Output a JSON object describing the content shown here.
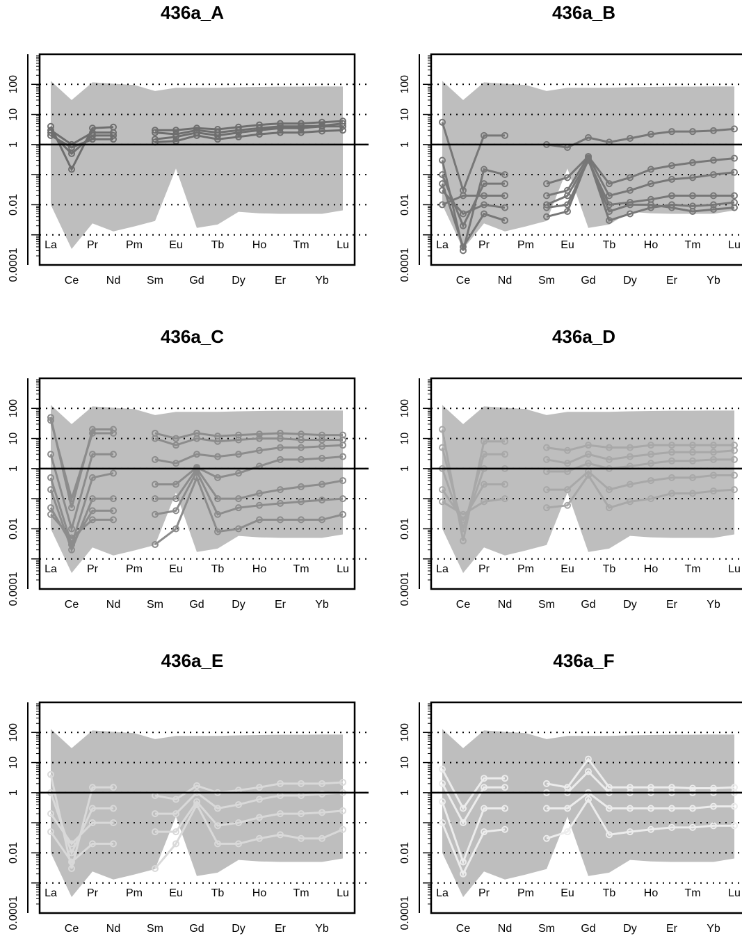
{
  "chart_data": [
    {
      "type": "line",
      "title": "436a_A",
      "log_y": true,
      "categories": [
        "La",
        "Ce",
        "Pr",
        "Nd",
        "Pm",
        "Sm",
        "Eu",
        "Gd",
        "Tb",
        "Dy",
        "Ho",
        "Er",
        "Tm",
        "Yb",
        "Lu"
      ],
      "ylim": [
        0.0001,
        1000
      ],
      "yticks": [
        100,
        10,
        1,
        0.01,
        0.0001
      ],
      "grid_lines": [
        100,
        10,
        1,
        0.1,
        0.01,
        0.001
      ],
      "reference_line": 1,
      "envelope": {
        "color": "#bebebe",
        "upper": [
          130,
          30,
          117,
          105,
          95,
          60,
          77,
          77,
          77,
          80,
          82,
          84,
          84,
          85,
          85
        ],
        "lower": [
          0.01,
          0.00034,
          0.0024,
          0.0013,
          0.0019,
          0.0029,
          0.16,
          0.0017,
          0.0022,
          0.0058,
          0.0052,
          0.005,
          0.005,
          0.005,
          0.0065
        ]
      },
      "color": "#6e6e6e",
      "series": [
        {
          "values": [
            4,
            0.15,
            3.5,
            3.8,
            null,
            3,
            3,
            3.5,
            3.2,
            3.8,
            4.5,
            5,
            5,
            5.5,
            6
          ]
        },
        {
          "values": [
            2.5,
            0.5,
            2,
            2,
            null,
            1.5,
            1.8,
            2.5,
            2,
            2.5,
            3,
            3.5,
            3.5,
            4,
            4
          ]
        },
        {
          "values": [
            3,
            1,
            2.5,
            2.5,
            null,
            1.2,
            1.3,
            2,
            1.5,
            1.8,
            2.2,
            2.5,
            2.5,
            2.8,
            3
          ]
        },
        {
          "values": [
            2,
            0.8,
            1.5,
            1.5,
            null,
            2.5,
            2.2,
            3,
            2.5,
            3,
            3.5,
            4,
            4,
            4.2,
            5
          ]
        }
      ]
    },
    {
      "type": "line",
      "title": "436a_B",
      "log_y": true,
      "categories": [
        "La",
        "Ce",
        "Pr",
        "Nd",
        "Pm",
        "Sm",
        "Eu",
        "Gd",
        "Tb",
        "Dy",
        "Ho",
        "Er",
        "Tm",
        "Yb",
        "Lu"
      ],
      "ylim": [
        0.0001,
        1000
      ],
      "yticks": [
        100,
        10,
        1,
        0.01,
        0.0001
      ],
      "grid_lines": [
        100,
        10,
        1,
        0.1,
        0.01,
        0.001
      ],
      "reference_line": 1,
      "envelope": {
        "color": "#bebebe",
        "upper": [
          130,
          30,
          117,
          105,
          95,
          60,
          77,
          77,
          77,
          80,
          82,
          84,
          84,
          85,
          85
        ],
        "lower": [
          0.01,
          0.00034,
          0.0024,
          0.0013,
          0.0019,
          0.0029,
          0.16,
          0.0017,
          0.0022,
          0.0058,
          0.0052,
          0.005,
          0.005,
          0.005,
          0.0065
        ]
      },
      "color": "#777777",
      "series": [
        {
          "values": [
            5.5,
            0.03,
            2,
            2,
            null,
            1,
            0.8,
            1.7,
            1.2,
            1.6,
            2.2,
            2.7,
            2.7,
            2.9,
            3.3
          ]
        },
        {
          "values": [
            0.3,
            0.0003,
            0.15,
            0.1,
            null,
            0.05,
            0.08,
            0.4,
            0.05,
            0.08,
            0.15,
            0.2,
            0.25,
            0.3,
            0.35
          ]
        },
        {
          "values": [
            0.1,
            0.002,
            0.05,
            0.05,
            null,
            0.02,
            0.03,
            0.4,
            0.02,
            0.03,
            0.05,
            0.07,
            0.08,
            0.1,
            0.12
          ]
        },
        {
          "values": [
            0.03,
            0.005,
            0.01,
            0.008,
            null,
            0.004,
            0.006,
            0.35,
            0.003,
            0.005,
            0.008,
            0.01,
            0.009,
            0.01,
            0.012
          ]
        },
        {
          "values": [
            0.01,
            0.02,
            0.02,
            0.02,
            null,
            0.01,
            0.02,
            0.3,
            0.01,
            0.012,
            0.015,
            0.02,
            0.02,
            0.02,
            0.02
          ]
        },
        {
          "values": [
            0.05,
            0.0004,
            0.005,
            0.003,
            null,
            0.008,
            0.01,
            0.3,
            0.006,
            0.01,
            0.01,
            0.008,
            0.006,
            0.007,
            0.008
          ]
        }
      ]
    },
    {
      "type": "line",
      "title": "436a_C",
      "log_y": true,
      "categories": [
        "La",
        "Ce",
        "Pr",
        "Nd",
        "Pm",
        "Sm",
        "Eu",
        "Gd",
        "Tb",
        "Dy",
        "Ho",
        "Er",
        "Tm",
        "Yb",
        "Lu"
      ],
      "ylim": [
        0.0001,
        1000
      ],
      "yticks": [
        100,
        10,
        1,
        0.01,
        0.0001
      ],
      "grid_lines": [
        100,
        10,
        1,
        0.1,
        0.01,
        0.001
      ],
      "reference_line": 1,
      "envelope": {
        "color": "#bebebe",
        "upper": [
          130,
          30,
          117,
          105,
          95,
          60,
          77,
          77,
          77,
          80,
          82,
          84,
          84,
          85,
          85
        ],
        "lower": [
          0.01,
          0.00034,
          0.0024,
          0.0013,
          0.0019,
          0.0029,
          0.16,
          0.0017,
          0.0022,
          0.0058,
          0.0052,
          0.005,
          0.005,
          0.005,
          0.0065
        ]
      },
      "color": "#8c8c8c",
      "series": [
        {
          "values": [
            50,
            0.05,
            20,
            20,
            null,
            15,
            10,
            15,
            12,
            13,
            14,
            15,
            14,
            13,
            13
          ]
        },
        {
          "values": [
            40,
            0.1,
            15,
            15,
            null,
            10,
            6,
            10,
            8,
            9,
            10,
            10,
            9,
            9,
            9
          ]
        },
        {
          "values": [
            3,
            0.01,
            3,
            3,
            null,
            2,
            1.5,
            3,
            2.5,
            3,
            4,
            5,
            5,
            5.5,
            6
          ]
        },
        {
          "values": [
            0.5,
            0.003,
            0.5,
            0.7,
            null,
            0.3,
            0.3,
            1.1,
            0.5,
            0.7,
            1.2,
            2,
            2,
            2.2,
            2.5
          ]
        },
        {
          "values": [
            0.2,
            0.002,
            0.1,
            0.1,
            null,
            0.1,
            0.1,
            1,
            0.1,
            0.1,
            0.15,
            0.2,
            0.25,
            0.3,
            0.4
          ]
        },
        {
          "values": [
            0.05,
            0.003,
            0.04,
            0.04,
            null,
            0.03,
            0.04,
            0.8,
            0.03,
            0.05,
            0.06,
            0.07,
            0.08,
            0.09,
            0.1
          ]
        },
        {
          "values": [
            0.03,
            0.005,
            0.02,
            0.02,
            null,
            0.003,
            0.01,
            0.5,
            0.008,
            0.01,
            0.02,
            0.02,
            0.02,
            0.02,
            0.03
          ]
        }
      ]
    },
    {
      "type": "line",
      "title": "436a_D",
      "log_y": true,
      "categories": [
        "La",
        "Ce",
        "Pr",
        "Nd",
        "Pm",
        "Sm",
        "Eu",
        "Gd",
        "Tb",
        "Dy",
        "Ho",
        "Er",
        "Tm",
        "Yb",
        "Lu"
      ],
      "ylim": [
        0.0001,
        1000
      ],
      "yticks": [
        100,
        10,
        1,
        0.01,
        0.0001
      ],
      "grid_lines": [
        100,
        10,
        1,
        0.1,
        0.01,
        0.001
      ],
      "reference_line": 1,
      "envelope": {
        "color": "#bebebe",
        "upper": [
          130,
          30,
          117,
          105,
          95,
          60,
          77,
          77,
          77,
          80,
          82,
          84,
          84,
          85,
          85
        ],
        "lower": [
          0.01,
          0.00034,
          0.0024,
          0.0013,
          0.0019,
          0.0029,
          0.16,
          0.0017,
          0.0022,
          0.0058,
          0.0052,
          0.005,
          0.005,
          0.005,
          0.0065
        ]
      },
      "color": "#a8a8a8",
      "series": [
        {
          "values": [
            20,
            0.004,
            8,
            8,
            null,
            5,
            4,
            6,
            5,
            5,
            6,
            6,
            6,
            6,
            6
          ]
        },
        {
          "values": [
            5,
            0.01,
            3,
            3,
            null,
            2,
            1.5,
            3,
            2,
            2.5,
            3,
            3.5,
            3.5,
            3.5,
            4
          ]
        },
        {
          "values": [
            1,
            0.01,
            1,
            1,
            null,
            0.8,
            0.8,
            1.5,
            1,
            1.2,
            1.5,
            1.8,
            1.8,
            2,
            2
          ]
        },
        {
          "values": [
            0.2,
            0.02,
            0.3,
            0.3,
            null,
            0.2,
            0.2,
            0.8,
            0.2,
            0.3,
            0.4,
            0.5,
            0.5,
            0.6,
            0.6
          ]
        },
        {
          "values": [
            0.08,
            0.03,
            0.08,
            0.1,
            null,
            0.05,
            0.06,
            0.6,
            0.05,
            0.08,
            0.1,
            0.15,
            0.15,
            0.18,
            0.2
          ]
        }
      ]
    },
    {
      "type": "line",
      "title": "436a_E",
      "log_y": true,
      "categories": [
        "La",
        "Ce",
        "Pr",
        "Nd",
        "Pm",
        "Sm",
        "Eu",
        "Gd",
        "Tb",
        "Dy",
        "Ho",
        "Er",
        "Tm",
        "Yb",
        "Lu"
      ],
      "ylim": [
        0.0001,
        1000
      ],
      "yticks": [
        100,
        10,
        1,
        0.01,
        0.0001
      ],
      "grid_lines": [
        100,
        10,
        1,
        0.1,
        0.01,
        0.001
      ],
      "reference_line": 1,
      "envelope": {
        "color": "#bebebe",
        "upper": [
          130,
          30,
          117,
          105,
          95,
          60,
          77,
          77,
          77,
          80,
          82,
          84,
          84,
          85,
          85
        ],
        "lower": [
          0.01,
          0.00034,
          0.0024,
          0.0013,
          0.0019,
          0.0029,
          0.16,
          0.0017,
          0.0022,
          0.0058,
          0.0052,
          0.005,
          0.005,
          0.005,
          0.0065
        ]
      },
      "color": "#d9d9d9",
      "series": [
        {
          "values": [
            4,
            0.003,
            1.5,
            1.5,
            null,
            0.8,
            0.6,
            1.7,
            1,
            1.2,
            1.5,
            2,
            2,
            2,
            2.2
          ]
        },
        {
          "values": [
            1,
            0.01,
            0.3,
            0.3,
            null,
            0.2,
            0.2,
            1,
            0.3,
            0.4,
            0.6,
            0.8,
            0.8,
            0.9,
            1
          ]
        },
        {
          "values": [
            0.2,
            0.02,
            0.1,
            0.1,
            null,
            0.05,
            0.05,
            0.5,
            0.08,
            0.1,
            0.15,
            0.2,
            0.2,
            0.22,
            0.25
          ]
        },
        {
          "values": [
            0.05,
            0.005,
            0.02,
            0.02,
            null,
            0.003,
            0.02,
            0.4,
            0.02,
            0.02,
            0.03,
            0.04,
            0.03,
            0.03,
            0.06
          ]
        }
      ]
    },
    {
      "type": "line",
      "title": "436a_F",
      "log_y": true,
      "categories": [
        "La",
        "Ce",
        "Pr",
        "Nd",
        "Pm",
        "Sm",
        "Eu",
        "Gd",
        "Tb",
        "Dy",
        "Ho",
        "Er",
        "Tm",
        "Yb",
        "Lu"
      ],
      "ylim": [
        0.0001,
        1000
      ],
      "yticks": [
        100,
        10,
        1,
        0.01,
        0.0001
      ],
      "grid_lines": [
        100,
        10,
        1,
        0.1,
        0.01,
        0.001
      ],
      "reference_line": 1,
      "envelope": {
        "color": "#bebebe",
        "upper": [
          130,
          30,
          117,
          105,
          95,
          60,
          77,
          77,
          77,
          80,
          82,
          84,
          84,
          85,
          85
        ],
        "lower": [
          0.01,
          0.00034,
          0.0024,
          0.0013,
          0.0019,
          0.0029,
          0.16,
          0.0017,
          0.0022,
          0.0058,
          0.0052,
          0.005,
          0.005,
          0.005,
          0.0065
        ]
      },
      "color": "#ececec",
      "series": [
        {
          "values": [
            6,
            0.3,
            3,
            3,
            null,
            2,
            1.5,
            13,
            1.5,
            1.5,
            1.5,
            1.5,
            1.4,
            1.4,
            1.5
          ]
        },
        {
          "values": [
            2,
            0.1,
            1.5,
            1.5,
            null,
            1,
            1,
            5,
            1,
            1,
            1,
            1,
            1,
            1,
            1
          ]
        },
        {
          "values": [
            0.5,
            0.005,
            0.3,
            0.3,
            null,
            0.3,
            0.3,
            1,
            0.3,
            0.3,
            0.3,
            0.3,
            0.3,
            0.35,
            0.35
          ]
        },
        {
          "values": [
            0.1,
            0.002,
            0.05,
            0.06,
            null,
            0.03,
            0.05,
            0.6,
            0.04,
            0.05,
            0.06,
            0.07,
            0.07,
            0.08,
            0.08
          ]
        }
      ]
    }
  ]
}
